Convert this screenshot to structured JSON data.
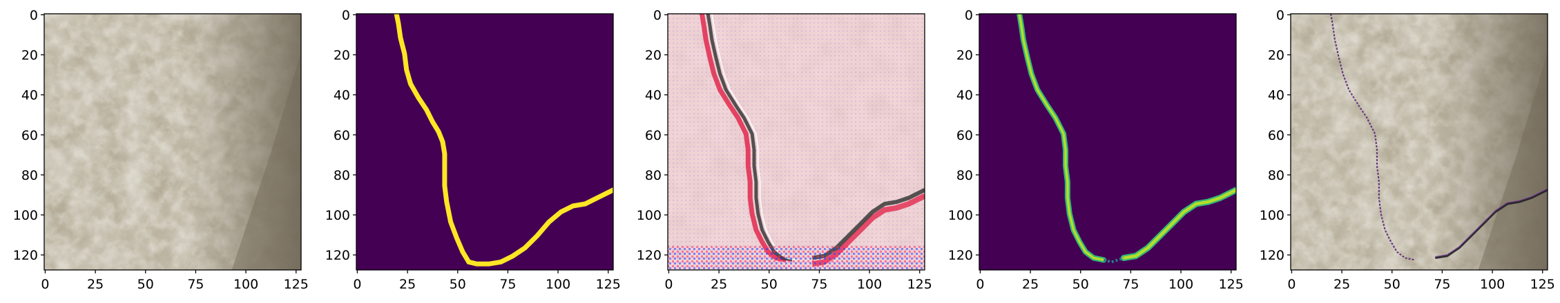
{
  "figure": {
    "panels": [
      {
        "name": "input-image",
        "kind": "photo"
      },
      {
        "name": "ground-truth-mask",
        "kind": "mask"
      },
      {
        "name": "feature-visualization",
        "kind": "feature"
      },
      {
        "name": "predicted-mask",
        "kind": "prediction"
      },
      {
        "name": "overlay",
        "kind": "overlay"
      }
    ],
    "x_ticks": [
      "0",
      "25",
      "50",
      "75",
      "100",
      "125"
    ],
    "y_ticks": [
      "0",
      "20",
      "40",
      "60",
      "80",
      "100",
      "120"
    ],
    "x_tick_values": [
      0,
      25,
      50,
      75,
      100,
      125
    ],
    "y_tick_values": [
      0,
      20,
      40,
      60,
      80,
      100,
      120
    ],
    "image_size": 128,
    "colors": {
      "mask_background": "#440154",
      "mask_foreground": "#fde725",
      "prediction_core": "#b5de2b",
      "prediction_edge": "#35b779",
      "stone_base": "#b5ad99",
      "stone_light": "#e0dccd",
      "stone_dark": "#7e7462",
      "feature_base": "#f1d4d6",
      "feature_red": "#e2294d",
      "feature_dark": "#3a3a3a"
    }
  }
}
